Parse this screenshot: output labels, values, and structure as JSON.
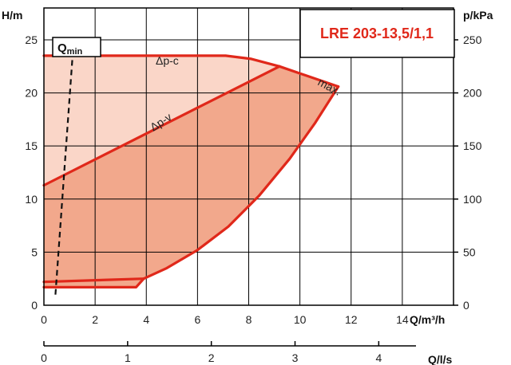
{
  "chart_data": {
    "type": "area",
    "title": "LRE 203-13,5/1,1",
    "xlabel": "Q/m³/h",
    "ylabel_left": "H/m",
    "ylabel_right": "p/kPa",
    "xlabel_secondary": "Q/l/s",
    "xlim": [
      0,
      16
    ],
    "ylim": [
      0,
      28
    ],
    "y2lim": [
      0,
      280
    ],
    "x2lim": [
      0,
      4.445
    ],
    "x_ticks": [
      0,
      2,
      4,
      6,
      8,
      10,
      12,
      14
    ],
    "y_ticks": [
      0,
      5,
      10,
      15,
      20,
      25
    ],
    "y2_ticks": [
      0,
      50,
      100,
      150,
      200,
      250
    ],
    "x2_ticks": [
      0,
      1,
      2,
      3,
      4
    ],
    "grid": true,
    "colors": {
      "curve": "#e0281a",
      "light_area": "#fad6c8",
      "dark_area": "#f2a88c",
      "qmin_line": "#111111"
    },
    "series": [
      {
        "name": "Δp-c",
        "x": [
          0,
          7.1,
          8.1,
          9.2
        ],
        "y": [
          23.5,
          23.5,
          23.2,
          22.5
        ]
      },
      {
        "name": "Δp-v",
        "x": [
          0,
          9.2
        ],
        "y": [
          11.3,
          22.5
        ]
      },
      {
        "name": "max.",
        "x": [
          9.2,
          11.5
        ],
        "y": [
          22.5,
          20.6
        ]
      },
      {
        "name": "",
        "x": [
          11.5,
          10.6,
          9.6,
          8.4,
          7.2,
          6.0,
          4.8,
          3.9
        ],
        "y": [
          20.6,
          17.2,
          13.8,
          10.3,
          7.4,
          5.2,
          3.5,
          2.5
        ]
      },
      {
        "name": "",
        "x": [
          0,
          3.6,
          3.9
        ],
        "y": [
          1.7,
          1.7,
          2.5
        ]
      },
      {
        "name": "",
        "x": [
          0,
          3.9
        ],
        "y": [
          2.2,
          2.5
        ]
      },
      {
        "name": "Qmin",
        "x": [
          0.45,
          1.15
        ],
        "y": [
          1.0,
          24.5
        ]
      }
    ],
    "annotations": {
      "dp_c": "Δp-c",
      "dp_v": "Δp-v",
      "max": "max.",
      "qmin_main": "Q",
      "qmin_sub": "min"
    }
  }
}
